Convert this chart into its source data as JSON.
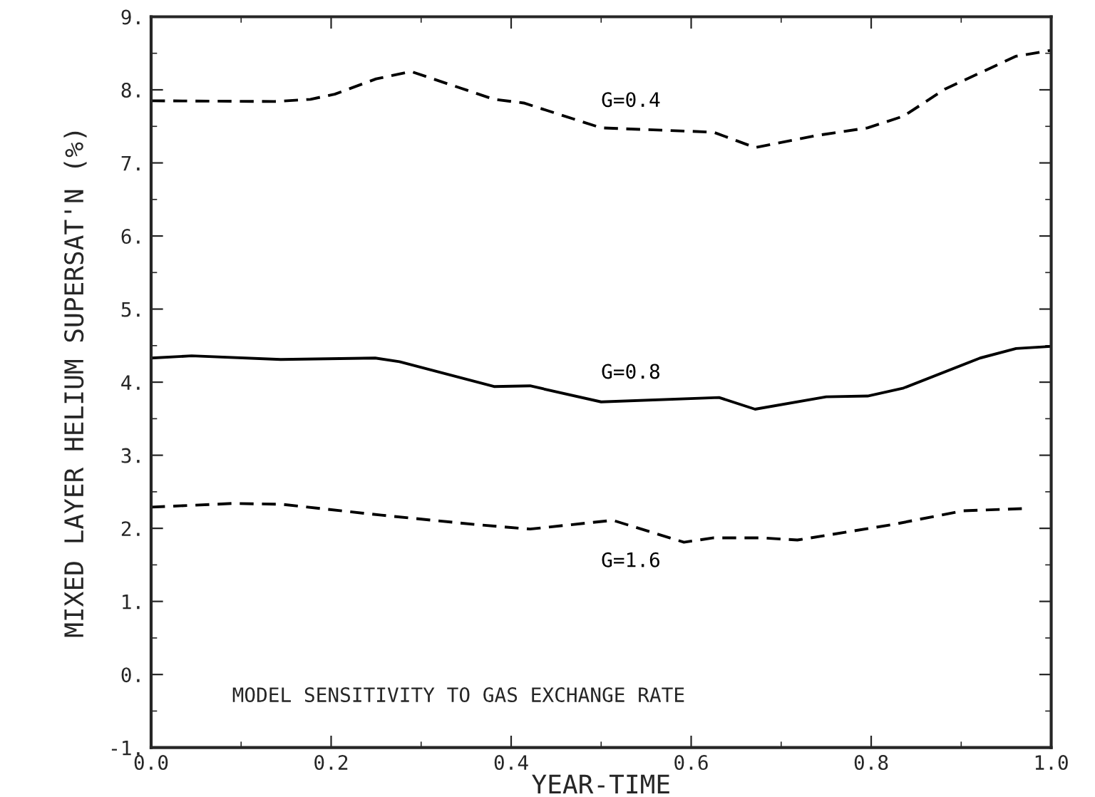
{
  "chart_data": {
    "type": "line",
    "xlabel": "YEAR-TIME",
    "ylabel": "MIXED LAYER HELIUM SUPERSAT'N (%)",
    "xlim": [
      0,
      1
    ],
    "ylim": [
      -1,
      9
    ],
    "xticks": [
      {
        "value": 0,
        "label": "0.0"
      },
      {
        "value": 0.2,
        "label": "0.2"
      },
      {
        "value": 0.4,
        "label": "0.4"
      },
      {
        "value": 0.6,
        "label": "0.6"
      },
      {
        "value": 0.8,
        "label": "0.8"
      },
      {
        "value": 1,
        "label": "1.0"
      }
    ],
    "yticks": [
      {
        "value": -1,
        "label": "-1."
      },
      {
        "value": 0,
        "label": "0."
      },
      {
        "value": 1,
        "label": "1."
      },
      {
        "value": 2,
        "label": "2."
      },
      {
        "value": 3,
        "label": "3."
      },
      {
        "value": 4,
        "label": "4."
      },
      {
        "value": 5,
        "label": "5."
      },
      {
        "value": 6,
        "label": "6."
      },
      {
        "value": 7,
        "label": "7."
      },
      {
        "value": 8,
        "label": "8."
      },
      {
        "value": 9,
        "label": "9."
      }
    ],
    "grid": false,
    "marker": "none",
    "series": [
      {
        "name": "G=0.4",
        "color": "#000000",
        "line_style": "dashed",
        "x": [
          0,
          0.137,
          0.177,
          0.204,
          0.25,
          0.289,
          0.381,
          0.414,
          0.5,
          0.625,
          0.671,
          0.737,
          0.796,
          0.836,
          0.882,
          0.961,
          1.0
        ],
        "values": [
          7.85,
          7.84,
          7.87,
          7.94,
          8.15,
          8.25,
          7.87,
          7.82,
          7.48,
          7.42,
          7.21,
          7.37,
          7.48,
          7.64,
          8.01,
          8.46,
          8.54
        ]
      },
      {
        "name": "G=0.8",
        "color": "#000000",
        "line_style": "solid",
        "x": [
          0,
          0.045,
          0.144,
          0.249,
          0.276,
          0.381,
          0.421,
          0.5,
          0.631,
          0.671,
          0.75,
          0.796,
          0.836,
          0.921,
          0.961,
          1.0
        ],
        "values": [
          4.33,
          4.36,
          4.31,
          4.33,
          4.28,
          3.94,
          3.95,
          3.73,
          3.79,
          3.63,
          3.8,
          3.81,
          3.92,
          4.33,
          4.46,
          4.49
        ]
      },
      {
        "name": "G=1.6",
        "color": "#000000",
        "line_style": "dashed",
        "x": [
          0,
          0.09,
          0.144,
          0.256,
          0.362,
          0.421,
          0.513,
          0.592,
          0.625,
          0.678,
          0.718,
          0.823,
          0.902,
          0.968
        ],
        "values": [
          2.29,
          2.34,
          2.33,
          2.18,
          2.05,
          1.99,
          2.11,
          1.81,
          1.87,
          1.87,
          1.84,
          2.05,
          2.24,
          2.27
        ]
      }
    ],
    "annotations": [
      "MODEL SENSITIVITY TO GAS EXCHANGE RATE"
    ]
  }
}
